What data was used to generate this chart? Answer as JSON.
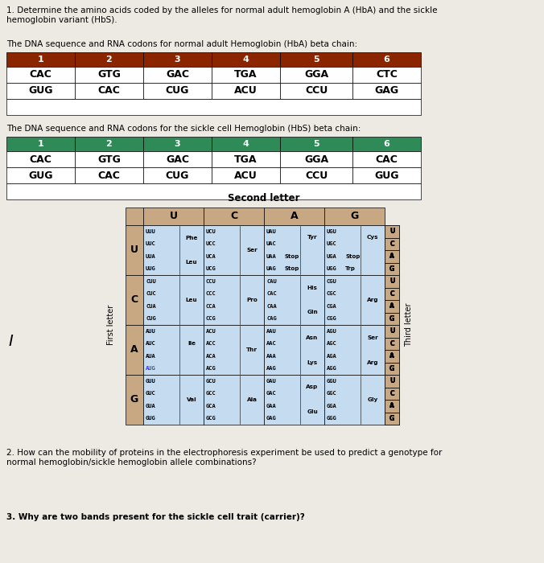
{
  "title_q1": "1. Determine the amino acids coded by the alleles for normal adult hemoglobin A (HbA) and the sickle\nhemoglobin variant (HbS).",
  "table1_title": "The DNA sequence and RNA codons for normal adult Hemoglobin (HbA) beta chain:",
  "table1_header_color": "#8B2500",
  "table1_header": [
    "1",
    "2",
    "3",
    "4",
    "5",
    "6"
  ],
  "table1_row1": [
    "CAC",
    "GTG",
    "GAC",
    "TGA",
    "GGA",
    "CTC"
  ],
  "table1_row2": [
    "GUG",
    "CAC",
    "CUG",
    "ACU",
    "CCU",
    "GAG"
  ],
  "table2_title": "The DNA sequence and RNA codons for the sickle cell Hemoglobin (HbS) beta chain:",
  "table2_header_color": "#2E8B57",
  "table2_header": [
    "1",
    "2",
    "3",
    "4",
    "5",
    "6"
  ],
  "table2_row1": [
    "CAC",
    "GTG",
    "GAC",
    "TGA",
    "GGA",
    "CAC"
  ],
  "table2_row2": [
    "GUG",
    "CAC",
    "CUG",
    "ACU",
    "CCU",
    "GUG"
  ],
  "codon_title": "Second letter",
  "header_bg_color": "#C8A882",
  "cell_bg_color": "#C5DCF0",
  "q2_text": "2. How can the mobility of proteins in the electrophoresis experiment be used to predict a genotype for\nnormal hemoglobin/sickle hemoglobin allele combinations?",
  "q3_text": "3. Why are two bands present for the sickle cell trait (carrier)?",
  "bg_color": "#ede9e3"
}
